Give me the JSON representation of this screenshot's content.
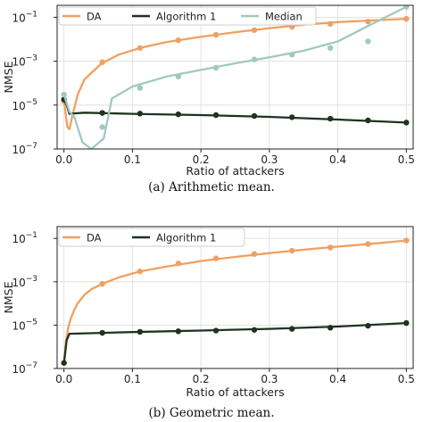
{
  "chart_data": [
    {
      "type": "line",
      "id": "a",
      "caption": "(a) Arithmetic mean.",
      "xlabel": "Ratio of attackers",
      "ylabel": "NMSE",
      "yscale": "log",
      "xlim": [
        -0.01,
        0.51
      ],
      "ylim": [
        1e-07,
        0.35
      ],
      "xticks": [
        0.0,
        0.1,
        0.2,
        0.3,
        0.4,
        0.5
      ],
      "xtick_labels": [
        "0.0",
        "0.1",
        "0.2",
        "0.3",
        "0.4",
        "0.5"
      ],
      "yticks": [
        1e-07,
        1e-05,
        0.001,
        0.1
      ],
      "ytick_labels": [
        [
          "10",
          "−7"
        ],
        [
          "10",
          "−5"
        ],
        [
          "10",
          "−3"
        ],
        [
          "10",
          "−1"
        ]
      ],
      "grid": true,
      "legend": {
        "placement": "top-left",
        "ncol": 3
      },
      "series": [
        {
          "name": "DA",
          "color": "#f0a060",
          "line_x": [
            0.0,
            0.005,
            0.008,
            0.012,
            0.02,
            0.03,
            0.055,
            0.08,
            0.111,
            0.15,
            0.2,
            0.25,
            0.3,
            0.35,
            0.4,
            0.45,
            0.5
          ],
          "line_y": [
            1.5e-05,
            1e-06,
            8e-07,
            3e-06,
            3e-05,
            0.00015,
            0.0008,
            0.002,
            0.004,
            0.0075,
            0.013,
            0.021,
            0.032,
            0.046,
            0.06,
            0.072,
            0.085
          ],
          "points_x": [
            0.0,
            0.056,
            0.111,
            0.167,
            0.222,
            0.278,
            0.333,
            0.389,
            0.444,
            0.5
          ],
          "points_y": [
            1.5e-05,
            0.0009,
            0.004,
            0.009,
            0.016,
            0.026,
            0.037,
            0.05,
            0.064,
            0.085
          ]
        },
        {
          "name": "Algorithm 1",
          "color": "#1e3320",
          "line_x": [
            0.0,
            0.004,
            0.008,
            0.015,
            0.03,
            0.1,
            0.2,
            0.3,
            0.4,
            0.5
          ],
          "line_y": [
            1.8e-05,
            1e-05,
            4e-06,
            4.2e-06,
            4.5e-06,
            4e-06,
            3.5e-06,
            2.9e-06,
            2.2e-06,
            1.6e-06
          ],
          "points_x": [
            0.0,
            0.056,
            0.111,
            0.167,
            0.222,
            0.278,
            0.333,
            0.389,
            0.444,
            0.5
          ],
          "points_y": [
            1.8e-05,
            4.4e-06,
            4.1e-06,
            3.8e-06,
            3.5e-06,
            3.2e-06,
            2.8e-06,
            2.4e-06,
            2e-06,
            1.6e-06
          ]
        },
        {
          "name": "Median",
          "color": "#9fc9c0",
          "line_x": [
            0.0,
            0.008,
            0.015,
            0.027,
            0.04,
            0.058,
            0.07,
            0.1,
            0.15,
            0.2,
            0.25,
            0.3,
            0.35,
            0.4,
            0.45,
            0.5
          ],
          "line_y": [
            3e-05,
            5e-06,
            3e-06,
            2e-07,
            1e-07,
            3e-07,
            2e-05,
            7e-05,
            0.0002,
            0.0004,
            0.0008,
            0.0015,
            0.003,
            0.008,
            0.05,
            0.3
          ],
          "points_x": [
            0.0,
            0.056,
            0.111,
            0.167,
            0.222,
            0.278,
            0.333,
            0.389,
            0.444,
            0.5
          ],
          "points_y": [
            3e-05,
            1e-06,
            6e-05,
            0.0002,
            0.0005,
            0.0012,
            0.002,
            0.004,
            0.008,
            0.3
          ]
        }
      ]
    },
    {
      "type": "line",
      "id": "b",
      "caption": "(b) Geometric mean.",
      "xlabel": "Ratio of attackers",
      "ylabel": "NMSE",
      "yscale": "log",
      "xlim": [
        -0.01,
        0.51
      ],
      "ylim": [
        1e-07,
        0.35
      ],
      "xticks": [
        0.0,
        0.1,
        0.2,
        0.3,
        0.4,
        0.5
      ],
      "xtick_labels": [
        "0.0",
        "0.1",
        "0.2",
        "0.3",
        "0.4",
        "0.5"
      ],
      "yticks": [
        1e-07,
        1e-05,
        0.001,
        0.1
      ],
      "ytick_labels": [
        [
          "10",
          "−7"
        ],
        [
          "10",
          "−5"
        ],
        [
          "10",
          "−3"
        ],
        [
          "10",
          "−1"
        ]
      ],
      "grid": true,
      "legend": {
        "placement": "top-left",
        "ncol": 2
      },
      "series": [
        {
          "name": "DA",
          "color": "#f0a060",
          "line_x": [
            0.0,
            0.003,
            0.006,
            0.01,
            0.015,
            0.02,
            0.03,
            0.04,
            0.056,
            0.08,
            0.111,
            0.15,
            0.2,
            0.25,
            0.3,
            0.35,
            0.4,
            0.45,
            0.5
          ],
          "line_y": [
            1.8e-07,
            2e-06,
            7e-06,
            2e-05,
            5e-05,
            0.0001,
            0.00025,
            0.00045,
            0.0008,
            0.0016,
            0.003,
            0.005,
            0.009,
            0.014,
            0.021,
            0.03,
            0.042,
            0.057,
            0.08
          ],
          "points_x": [
            0.0,
            0.056,
            0.111,
            0.167,
            0.222,
            0.278,
            0.333,
            0.389,
            0.444,
            0.5
          ],
          "points_y": [
            1.8e-07,
            0.0008,
            0.003,
            0.007,
            0.012,
            0.019,
            0.027,
            0.038,
            0.055,
            0.08
          ]
        },
        {
          "name": "Algorithm 1",
          "color": "#1e3320",
          "line_x": [
            0.0,
            0.004,
            0.008,
            0.1,
            0.2,
            0.3,
            0.4,
            0.5
          ],
          "line_y": [
            1.8e-07,
            2e-06,
            4e-06,
            4.8e-06,
            5.6e-06,
            6.7e-06,
            8.6e-06,
            1.25e-05
          ],
          "points_x": [
            0.0,
            0.056,
            0.111,
            0.167,
            0.222,
            0.278,
            0.333,
            0.389,
            0.444,
            0.5
          ],
          "points_y": [
            1.8e-07,
            4.4e-06,
            4.9e-06,
            5.2e-06,
            5.6e-06,
            6e-06,
            6.7e-06,
            7.6e-06,
            9.3e-06,
            1.25e-05
          ]
        }
      ]
    }
  ]
}
